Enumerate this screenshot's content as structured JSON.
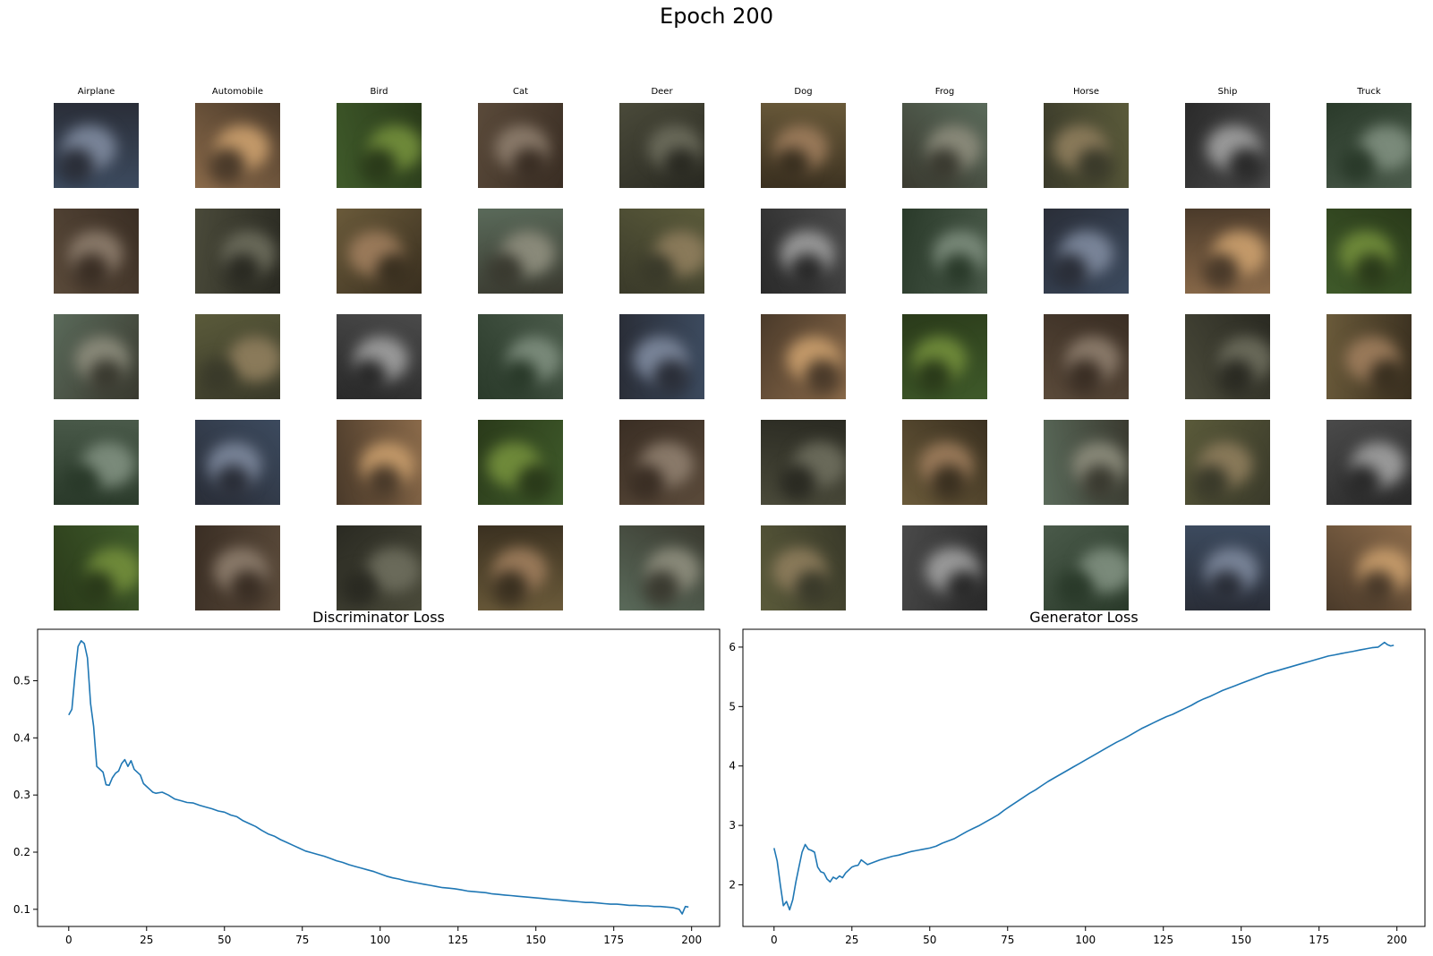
{
  "figure": {
    "title": "Epoch 200"
  },
  "grid": {
    "class_names": [
      "Airplane",
      "Automobile",
      "Bird",
      "Cat",
      "Deer",
      "Dog",
      "Frog",
      "Horse",
      "Ship",
      "Truck"
    ],
    "rows": 5
  },
  "chart_data": [
    {
      "type": "line",
      "title": "Discriminator Loss",
      "xlabel": "",
      "ylabel": "",
      "xlim": [
        -10,
        209
      ],
      "ylim": [
        0.07,
        0.59
      ],
      "xticks": [
        "0",
        "25",
        "50",
        "75",
        "100",
        "125",
        "150",
        "175",
        "200"
      ],
      "xtick_values": [
        0,
        25,
        50,
        75,
        100,
        125,
        150,
        175,
        200
      ],
      "yticks": [
        "0.1",
        "0.2",
        "0.3",
        "0.4",
        "0.5"
      ],
      "ytick_values": [
        0.1,
        0.2,
        0.3,
        0.4,
        0.5
      ],
      "grid": false,
      "series": [
        {
          "color": "#1f77b4",
          "points": [
            [
              0,
              0.44
            ],
            [
              1,
              0.45
            ],
            [
              2,
              0.51
            ],
            [
              3,
              0.56
            ],
            [
              4,
              0.57
            ],
            [
              5,
              0.565
            ],
            [
              6,
              0.54
            ],
            [
              7,
              0.46
            ],
            [
              8,
              0.42
            ],
            [
              9,
              0.35
            ],
            [
              10,
              0.345
            ],
            [
              11,
              0.34
            ],
            [
              12,
              0.318
            ],
            [
              13,
              0.317
            ],
            [
              14,
              0.33
            ],
            [
              15,
              0.338
            ],
            [
              16,
              0.342
            ],
            [
              17,
              0.355
            ],
            [
              18,
              0.362
            ],
            [
              19,
              0.35
            ],
            [
              20,
              0.36
            ],
            [
              21,
              0.345
            ],
            [
              22,
              0.34
            ],
            [
              23,
              0.335
            ],
            [
              24,
              0.32
            ],
            [
              25,
              0.315
            ],
            [
              26,
              0.31
            ],
            [
              27,
              0.305
            ],
            [
              28,
              0.303
            ],
            [
              30,
              0.305
            ],
            [
              32,
              0.3
            ],
            [
              34,
              0.293
            ],
            [
              36,
              0.29
            ],
            [
              38,
              0.287
            ],
            [
              40,
              0.286
            ],
            [
              42,
              0.282
            ],
            [
              44,
              0.279
            ],
            [
              46,
              0.276
            ],
            [
              48,
              0.272
            ],
            [
              50,
              0.27
            ],
            [
              52,
              0.265
            ],
            [
              54,
              0.262
            ],
            [
              56,
              0.255
            ],
            [
              58,
              0.25
            ],
            [
              60,
              0.245
            ],
            [
              62,
              0.238
            ],
            [
              64,
              0.232
            ],
            [
              66,
              0.228
            ],
            [
              68,
              0.222
            ],
            [
              70,
              0.217
            ],
            [
              72,
              0.212
            ],
            [
              74,
              0.207
            ],
            [
              76,
              0.202
            ],
            [
              78,
              0.199
            ],
            [
              80,
              0.196
            ],
            [
              82,
              0.193
            ],
            [
              84,
              0.189
            ],
            [
              86,
              0.185
            ],
            [
              88,
              0.182
            ],
            [
              90,
              0.178
            ],
            [
              92,
              0.175
            ],
            [
              94,
              0.172
            ],
            [
              96,
              0.169
            ],
            [
              98,
              0.166
            ],
            [
              100,
              0.162
            ],
            [
              102,
              0.158
            ],
            [
              104,
              0.155
            ],
            [
              106,
              0.153
            ],
            [
              108,
              0.15
            ],
            [
              110,
              0.148
            ],
            [
              112,
              0.146
            ],
            [
              114,
              0.144
            ],
            [
              116,
              0.142
            ],
            [
              118,
              0.14
            ],
            [
              120,
              0.138
            ],
            [
              122,
              0.137
            ],
            [
              124,
              0.136
            ],
            [
              126,
              0.134
            ],
            [
              128,
              0.132
            ],
            [
              130,
              0.131
            ],
            [
              132,
              0.13
            ],
            [
              134,
              0.129
            ],
            [
              136,
              0.127
            ],
            [
              138,
              0.126
            ],
            [
              140,
              0.125
            ],
            [
              142,
              0.124
            ],
            [
              144,
              0.123
            ],
            [
              146,
              0.122
            ],
            [
              148,
              0.121
            ],
            [
              150,
              0.12
            ],
            [
              152,
              0.119
            ],
            [
              154,
              0.118
            ],
            [
              156,
              0.117
            ],
            [
              158,
              0.116
            ],
            [
              160,
              0.115
            ],
            [
              162,
              0.114
            ],
            [
              164,
              0.113
            ],
            [
              166,
              0.112
            ],
            [
              168,
              0.112
            ],
            [
              170,
              0.111
            ],
            [
              172,
              0.11
            ],
            [
              174,
              0.109
            ],
            [
              176,
              0.109
            ],
            [
              178,
              0.108
            ],
            [
              180,
              0.107
            ],
            [
              182,
              0.107
            ],
            [
              184,
              0.106
            ],
            [
              186,
              0.106
            ],
            [
              188,
              0.105
            ],
            [
              190,
              0.105
            ],
            [
              192,
              0.104
            ],
            [
              194,
              0.103
            ],
            [
              196,
              0.1
            ],
            [
              197,
              0.092
            ],
            [
              198,
              0.105
            ],
            [
              199,
              0.104
            ]
          ]
        }
      ]
    },
    {
      "type": "line",
      "title": "Generator Loss",
      "xlabel": "",
      "ylabel": "",
      "xlim": [
        -10,
        209
      ],
      "ylim": [
        1.3,
        6.3
      ],
      "xticks": [
        "0",
        "25",
        "50",
        "75",
        "100",
        "125",
        "150",
        "175",
        "200"
      ],
      "xtick_values": [
        0,
        25,
        50,
        75,
        100,
        125,
        150,
        175,
        200
      ],
      "yticks": [
        "2",
        "3",
        "4",
        "5",
        "6"
      ],
      "ytick_values": [
        2,
        3,
        4,
        5,
        6
      ],
      "grid": false,
      "series": [
        {
          "color": "#1f77b4",
          "points": [
            [
              0,
              2.62
            ],
            [
              1,
              2.4
            ],
            [
              2,
              2.0
            ],
            [
              3,
              1.65
            ],
            [
              4,
              1.72
            ],
            [
              5,
              1.58
            ],
            [
              6,
              1.75
            ],
            [
              7,
              2.05
            ],
            [
              8,
              2.3
            ],
            [
              9,
              2.55
            ],
            [
              10,
              2.68
            ],
            [
              11,
              2.6
            ],
            [
              12,
              2.58
            ],
            [
              13,
              2.55
            ],
            [
              14,
              2.3
            ],
            [
              15,
              2.22
            ],
            [
              16,
              2.2
            ],
            [
              17,
              2.1
            ],
            [
              18,
              2.05
            ],
            [
              19,
              2.13
            ],
            [
              20,
              2.1
            ],
            [
              21,
              2.15
            ],
            [
              22,
              2.12
            ],
            [
              23,
              2.2
            ],
            [
              24,
              2.25
            ],
            [
              25,
              2.3
            ],
            [
              26,
              2.32
            ],
            [
              27,
              2.33
            ],
            [
              28,
              2.42
            ],
            [
              29,
              2.38
            ],
            [
              30,
              2.34
            ],
            [
              32,
              2.38
            ],
            [
              34,
              2.42
            ],
            [
              36,
              2.45
            ],
            [
              38,
              2.48
            ],
            [
              40,
              2.5
            ],
            [
              42,
              2.53
            ],
            [
              44,
              2.56
            ],
            [
              46,
              2.58
            ],
            [
              48,
              2.6
            ],
            [
              50,
              2.62
            ],
            [
              52,
              2.65
            ],
            [
              54,
              2.7
            ],
            [
              56,
              2.74
            ],
            [
              58,
              2.78
            ],
            [
              60,
              2.84
            ],
            [
              62,
              2.9
            ],
            [
              64,
              2.95
            ],
            [
              66,
              3.0
            ],
            [
              68,
              3.06
            ],
            [
              70,
              3.12
            ],
            [
              72,
              3.18
            ],
            [
              74,
              3.26
            ],
            [
              76,
              3.33
            ],
            [
              78,
              3.4
            ],
            [
              80,
              3.47
            ],
            [
              82,
              3.54
            ],
            [
              84,
              3.6
            ],
            [
              86,
              3.67
            ],
            [
              88,
              3.74
            ],
            [
              90,
              3.8
            ],
            [
              92,
              3.86
            ],
            [
              94,
              3.92
            ],
            [
              96,
              3.98
            ],
            [
              98,
              4.04
            ],
            [
              100,
              4.1
            ],
            [
              102,
              4.16
            ],
            [
              104,
              4.22
            ],
            [
              106,
              4.28
            ],
            [
              108,
              4.34
            ],
            [
              110,
              4.4
            ],
            [
              112,
              4.45
            ],
            [
              114,
              4.51
            ],
            [
              116,
              4.57
            ],
            [
              118,
              4.63
            ],
            [
              120,
              4.68
            ],
            [
              122,
              4.73
            ],
            [
              124,
              4.78
            ],
            [
              126,
              4.83
            ],
            [
              128,
              4.87
            ],
            [
              130,
              4.92
            ],
            [
              132,
              4.97
            ],
            [
              134,
              5.02
            ],
            [
              136,
              5.08
            ],
            [
              138,
              5.13
            ],
            [
              140,
              5.17
            ],
            [
              142,
              5.22
            ],
            [
              144,
              5.27
            ],
            [
              146,
              5.31
            ],
            [
              148,
              5.35
            ],
            [
              150,
              5.39
            ],
            [
              152,
              5.43
            ],
            [
              154,
              5.47
            ],
            [
              156,
              5.51
            ],
            [
              158,
              5.55
            ],
            [
              160,
              5.58
            ],
            [
              162,
              5.61
            ],
            [
              164,
              5.64
            ],
            [
              166,
              5.67
            ],
            [
              168,
              5.7
            ],
            [
              170,
              5.73
            ],
            [
              172,
              5.76
            ],
            [
              174,
              5.79
            ],
            [
              176,
              5.82
            ],
            [
              178,
              5.85
            ],
            [
              180,
              5.87
            ],
            [
              182,
              5.89
            ],
            [
              184,
              5.91
            ],
            [
              186,
              5.93
            ],
            [
              188,
              5.95
            ],
            [
              190,
              5.97
            ],
            [
              192,
              5.99
            ],
            [
              194,
              6.0
            ],
            [
              196,
              6.08
            ],
            [
              197,
              6.04
            ],
            [
              198,
              6.02
            ],
            [
              199,
              6.03
            ]
          ]
        }
      ]
    }
  ]
}
